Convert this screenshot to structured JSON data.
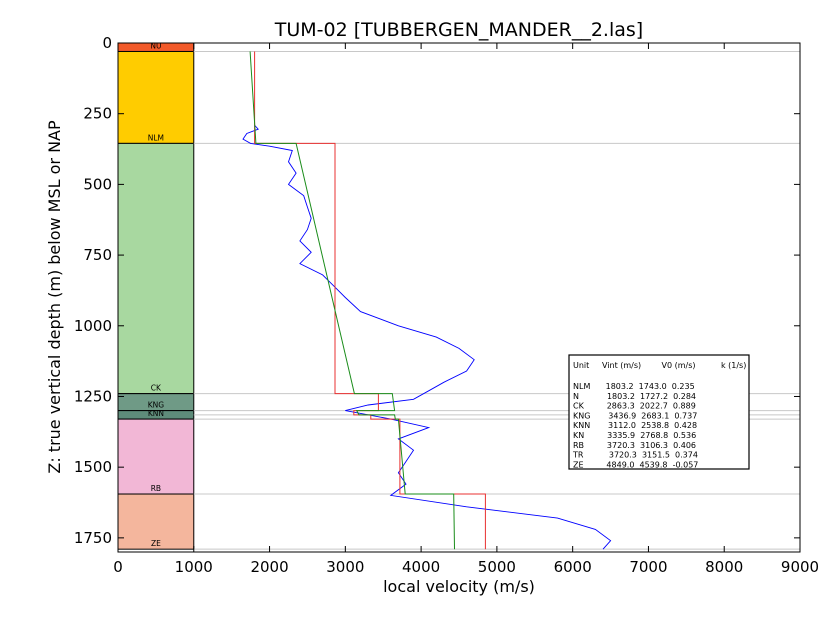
{
  "chart_data": {
    "type": "line",
    "title": "TUM-02 [TUBBERGEN_MANDER__2.las]",
    "xlabel": "local velocity (m/s)",
    "ylabel": "Z: true vertical depth (m) below MSL or NAP",
    "xlim": [
      0,
      9000
    ],
    "ylim": [
      1800,
      0
    ],
    "x_ticks": [
      "0",
      "1000",
      "2000",
      "3000",
      "4000",
      "5000",
      "6000",
      "7000",
      "8000",
      "9000"
    ],
    "y_ticks": [
      "0",
      "250",
      "500",
      "750",
      "1000",
      "1250",
      "1500",
      "1750"
    ],
    "y_tick_values": [
      0,
      250,
      500,
      750,
      1000,
      1250,
      1500,
      1750
    ],
    "x_tick_values": [
      0,
      1000,
      2000,
      3000,
      4000,
      5000,
      6000,
      7000,
      8000,
      9000
    ],
    "grid": false,
    "horizon_lines": [
      30,
      355,
      1240,
      1300,
      1315,
      1330,
      1595,
      1790
    ],
    "units": [
      {
        "label": "NU",
        "top": 0,
        "base": 30,
        "color": "#f25a2a"
      },
      {
        "label": "NLM",
        "top": 30,
        "base": 355,
        "color": "#ffcc00"
      },
      {
        "label": "CK",
        "top": 355,
        "base": 1240,
        "color": "#a8d8a0"
      },
      {
        "label": "KNG",
        "top": 1240,
        "base": 1300,
        "color": "#6f9a86"
      },
      {
        "label": "KNN",
        "top": 1300,
        "base": 1330,
        "color": "#5e8c7a"
      },
      {
        "label": "RB",
        "top": 1330,
        "base": 1595,
        "color": "#f2b7d6"
      },
      {
        "label": "ZE",
        "top": 1595,
        "base": 1790,
        "color": "#f4b69d"
      }
    ],
    "series": [
      {
        "color": "#0000ff",
        "points": [
          [
            1800,
            290
          ],
          [
            1850,
            305
          ],
          [
            1700,
            320
          ],
          [
            1650,
            340
          ],
          [
            1750,
            355
          ],
          [
            2000,
            365
          ],
          [
            2300,
            380
          ],
          [
            2250,
            420
          ],
          [
            2350,
            460
          ],
          [
            2250,
            500
          ],
          [
            2450,
            540
          ],
          [
            2500,
            580
          ],
          [
            2550,
            620
          ],
          [
            2500,
            660
          ],
          [
            2400,
            700
          ],
          [
            2550,
            740
          ],
          [
            2400,
            780
          ],
          [
            2700,
            820
          ],
          [
            2850,
            860
          ],
          [
            3000,
            900
          ],
          [
            3200,
            950
          ],
          [
            3700,
            1000
          ],
          [
            4200,
            1040
          ],
          [
            4500,
            1080
          ],
          [
            4700,
            1120
          ],
          [
            4600,
            1160
          ],
          [
            4300,
            1200
          ],
          [
            4100,
            1230
          ],
          [
            3900,
            1260
          ],
          [
            3300,
            1280
          ],
          [
            3000,
            1300
          ],
          [
            3600,
            1330
          ],
          [
            4100,
            1360
          ],
          [
            3700,
            1400
          ],
          [
            3900,
            1440
          ],
          [
            3800,
            1480
          ],
          [
            3700,
            1520
          ],
          [
            3800,
            1560
          ],
          [
            3600,
            1600
          ],
          [
            4600,
            1640
          ],
          [
            5800,
            1680
          ],
          [
            6300,
            1720
          ],
          [
            6500,
            1760
          ],
          [
            6400,
            1790
          ]
        ]
      },
      {
        "color": "#e83030",
        "points": [
          [
            1803,
            30
          ],
          [
            1803,
            355
          ],
          [
            2863,
            355
          ],
          [
            2863,
            1240
          ],
          [
            3437,
            1240
          ],
          [
            3437,
            1300
          ],
          [
            3112,
            1300
          ],
          [
            3112,
            1315
          ],
          [
            3336,
            1315
          ],
          [
            3336,
            1330
          ],
          [
            3720,
            1330
          ],
          [
            3720,
            1595
          ],
          [
            4849,
            1595
          ],
          [
            4849,
            1790
          ]
        ]
      },
      {
        "color": "#1a8c1a",
        "points": [
          [
            1743,
            30
          ],
          [
            1820,
            355
          ],
          [
            2350,
            355
          ],
          [
            3120,
            1240
          ],
          [
            3620,
            1240
          ],
          [
            3650,
            1300
          ],
          [
            3150,
            1300
          ],
          [
            3180,
            1315
          ],
          [
            3650,
            1315
          ],
          [
            3660,
            1330
          ],
          [
            3700,
            1330
          ],
          [
            3790,
            1595
          ],
          [
            4430,
            1595
          ],
          [
            4440,
            1790
          ]
        ]
      }
    ],
    "table": {
      "header": "Unit     Vint (m/s)        V0 (m/s)          k (1/s)",
      "rows": [
        "NLM      1803.2  1743.0  0.235",
        "N           1803.2  1727.2  0.284",
        "CK         2863.3  2022.7  0.889",
        "KNG       3436.9  2683.1  0.737",
        "KNN       3112.0  2538.8  0.428",
        "KN         3335.9  2768.8  0.536",
        "RB         3720.3  3106.3  0.406",
        "TR          3720.3  3151.5  0.374",
        "ZE         4849.0  4539.8  -0.057"
      ]
    }
  }
}
